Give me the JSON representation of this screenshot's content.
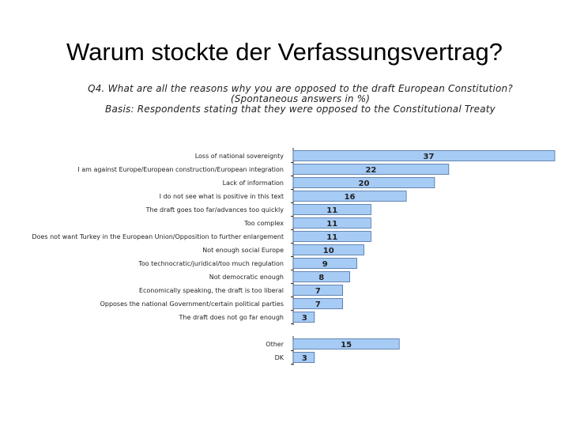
{
  "slide": {
    "title": "Warum stockte der Verfassungsvertrag?"
  },
  "chart_header": {
    "question": "Q4. What are all the reasons why you are opposed to the draft European Constitution?",
    "note": "(Spontaneous answers in %)",
    "basis": "Basis: Respondents stating that they were opposed to the Constitutional Treaty"
  },
  "chart_data": {
    "type": "bar",
    "orientation": "horizontal",
    "categories": [
      "Loss of national sovereignty",
      "I am against Europe/European construction/European integration",
      "Lack of information",
      "I do not see what is positive in this text",
      "The draft goes too far/advances too quickly",
      "Too complex",
      "Does not want Turkey in the European Union/Opposition to further enlargement",
      "Not enough social Europe",
      "Too technocratic/juridical/too much regulation",
      "Not democratic enough",
      "Economically speaking, the draft is too liberal",
      "Opposes the national Government/certain political parties",
      "The draft does not go far enough",
      "Other",
      "DK"
    ],
    "values": [
      37,
      22,
      20,
      16,
      11,
      11,
      11,
      10,
      9,
      8,
      7,
      7,
      3,
      15,
      3
    ],
    "xlim": [
      0,
      37
    ],
    "grid": false,
    "legend": "none",
    "colors": {
      "bar": "#a6cbf5",
      "bar_border": "#4a6fa0",
      "axis": "#333333"
    }
  }
}
